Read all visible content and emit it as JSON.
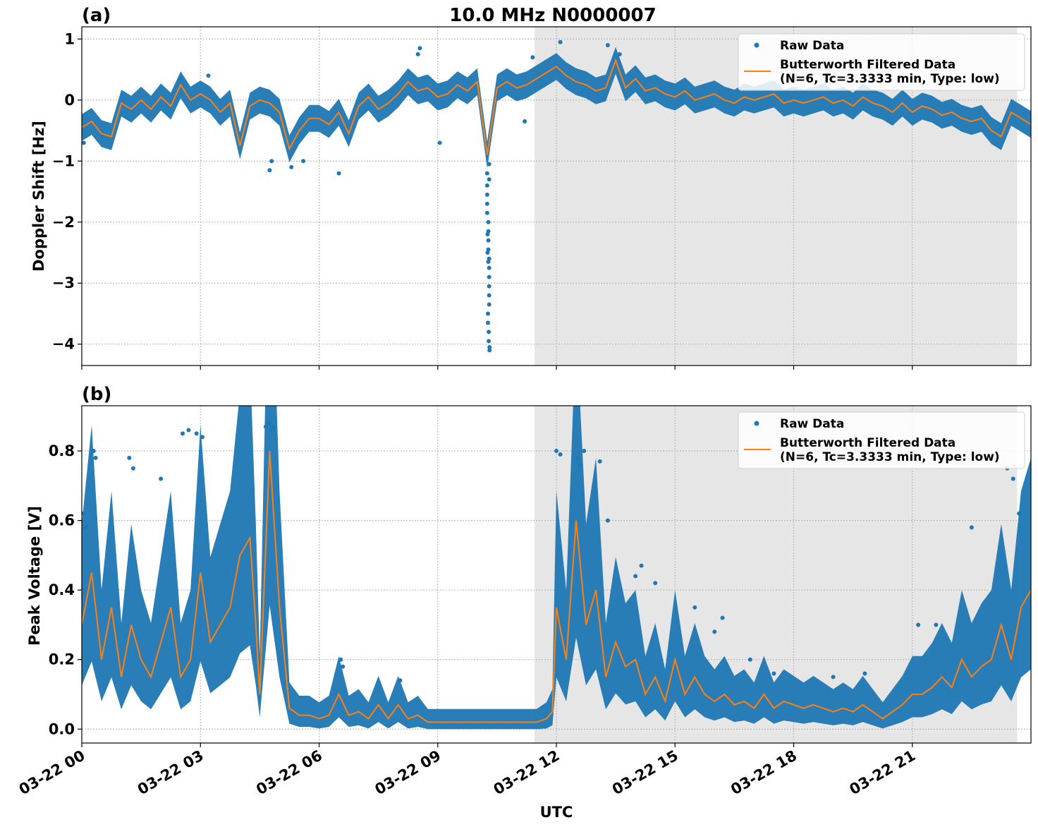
{
  "chart_data": {
    "type": "scatter",
    "title": "10.0 MHz N0000007",
    "xlabel": "UTC",
    "x_tick_labels": [
      "03-22 00",
      "03-22 03",
      "03-22 06",
      "03-22 09",
      "03-22 12",
      "03-22 15",
      "03-22 18",
      "03-22 21"
    ],
    "x_tick_hours": [
      0,
      3,
      6,
      9,
      12,
      15,
      18,
      21
    ],
    "xlim_hours": [
      0,
      24
    ],
    "shaded_region_hours": [
      11.45,
      23.65
    ],
    "colors": {
      "raw": "#1f77b4",
      "filtered": "#ff7f0e",
      "shade": "#e6e6e6",
      "grid": "#b0b0b0"
    },
    "legend": {
      "placement": "top-right",
      "raw_label": "Raw Data",
      "filtered_label_line1": "Butterworth Filtered Data",
      "filtered_label_line2": "(N=6, Tc=3.3333 min, Type: low)"
    },
    "panels": [
      {
        "label": "(a)",
        "ylabel": "Doppler Shift [Hz]",
        "ylim": [
          -4.35,
          1.2
        ],
        "y_ticks": [
          1,
          0,
          -1,
          -2,
          -3,
          -4
        ],
        "y_tick_labels": [
          "1",
          "0",
          "−1",
          "−2",
          "−3",
          "−4"
        ],
        "series": [
          {
            "name": "Butterworth Filtered Data",
            "x": [
              0,
              0.25,
              0.5,
              0.75,
              1,
              1.25,
              1.5,
              1.75,
              2,
              2.25,
              2.5,
              2.75,
              3,
              3.25,
              3.5,
              3.75,
              4,
              4.25,
              4.5,
              4.75,
              5,
              5.25,
              5.5,
              5.75,
              6,
              6.25,
              6.5,
              6.75,
              7,
              7.25,
              7.5,
              7.75,
              8,
              8.25,
              8.5,
              8.75,
              9,
              9.25,
              9.5,
              9.75,
              10,
              10.25,
              10.5,
              10.75,
              11,
              11.25,
              11.5,
              11.75,
              12,
              12.25,
              12.5,
              12.75,
              13,
              13.25,
              13.5,
              13.75,
              14,
              14.25,
              14.5,
              14.75,
              15,
              15.25,
              15.5,
              15.75,
              16,
              16.25,
              16.5,
              16.75,
              17,
              17.25,
              17.5,
              17.75,
              18,
              18.25,
              18.5,
              18.75,
              19,
              19.25,
              19.5,
              19.75,
              20,
              20.25,
              20.5,
              20.75,
              21,
              21.25,
              21.5,
              21.75,
              22,
              22.25,
              22.5,
              22.75,
              23,
              23.25,
              23.5,
              23.75,
              24
            ],
            "y": [
              -0.45,
              -0.35,
              -0.55,
              -0.6,
              -0.05,
              -0.15,
              0.0,
              -0.15,
              0.05,
              -0.1,
              0.25,
              0.0,
              0.1,
              0.0,
              -0.2,
              -0.05,
              -0.75,
              -0.1,
              0.0,
              -0.05,
              -0.2,
              -0.8,
              -0.5,
              -0.3,
              -0.3,
              -0.4,
              -0.2,
              -0.55,
              -0.1,
              0.05,
              -0.15,
              -0.05,
              0.1,
              0.3,
              0.15,
              0.2,
              0.05,
              0.1,
              0.25,
              0.15,
              0.3,
              -0.9,
              0.2,
              0.3,
              0.2,
              0.25,
              0.35,
              0.45,
              0.55,
              0.4,
              0.3,
              0.25,
              0.15,
              0.2,
              0.65,
              0.2,
              0.35,
              0.15,
              0.2,
              0.1,
              0.05,
              0.15,
              0.0,
              0.05,
              0.1,
              0.0,
              -0.05,
              0.05,
              0.0,
              0.05,
              0.1,
              -0.05,
              0.0,
              -0.05,
              0.0,
              0.05,
              -0.05,
              0.0,
              -0.1,
              0.05,
              -0.05,
              -0.1,
              -0.2,
              -0.05,
              -0.2,
              -0.1,
              -0.15,
              -0.25,
              -0.2,
              -0.3,
              -0.35,
              -0.3,
              -0.5,
              -0.6,
              -0.2,
              -0.3,
              -0.4
            ]
          },
          {
            "name": "Raw Data",
            "x": [
              10.25,
              10.25,
              10.25,
              10.25,
              10.25,
              10.28,
              10.28,
              10.28,
              10.28,
              10.3,
              10.3,
              10.3,
              10.3,
              10.3,
              10.27,
              10.27,
              10.29,
              10.29,
              10.31,
              10.31,
              10.3,
              10.26,
              10.26,
              10.28,
              10.3,
              10.3,
              8.5,
              8.55,
              9.05,
              11.2,
              11.4,
              13.3,
              12.1,
              13.6,
              4.75,
              4.8,
              6.5,
              5.3,
              5.6,
              2.5,
              3.2,
              0.05,
              0.5
            ],
            "y": [
              -1.2,
              -1.4,
              -1.55,
              -1.7,
              -1.85,
              -2.0,
              -2.15,
              -2.3,
              -2.45,
              -2.6,
              -2.75,
              -2.9,
              -3.2,
              -3.35,
              -3.5,
              -3.65,
              -3.8,
              -3.95,
              -4.05,
              -4.1,
              -3.05,
              -2.2,
              -2.5,
              -2.65,
              -1.3,
              -1.05,
              0.75,
              0.85,
              -0.7,
              -0.35,
              0.7,
              0.9,
              0.95,
              0.75,
              -1.15,
              -1.0,
              -1.2,
              -1.1,
              -1.0,
              0.35,
              0.4,
              -0.7,
              -0.6
            ]
          }
        ]
      },
      {
        "label": "(b)",
        "ylabel": "Peak Voltage [V]",
        "ylim": [
          -0.04,
          0.93
        ],
        "y_ticks": [
          0.8,
          0.6,
          0.4,
          0.2,
          0.0
        ],
        "y_tick_labels": [
          "0.8",
          "0.6",
          "0.4",
          "0.2",
          "0.0"
        ],
        "series": [
          {
            "name": "Butterworth Filtered Data",
            "x": [
              0,
              0.25,
              0.5,
              0.75,
              1,
              1.25,
              1.5,
              1.75,
              2,
              2.25,
              2.5,
              2.75,
              3,
              3.25,
              3.5,
              3.75,
              4,
              4.25,
              4.4,
              4.5,
              4.75,
              5,
              5.25,
              5.5,
              5.75,
              6,
              6.25,
              6.5,
              6.75,
              7,
              7.25,
              7.5,
              7.75,
              8,
              8.25,
              8.5,
              8.75,
              9,
              9.25,
              9.5,
              9.75,
              10,
              10.25,
              10.5,
              10.75,
              11,
              11.25,
              11.5,
              11.75,
              11.9,
              12,
              12.25,
              12.5,
              12.75,
              13,
              13.25,
              13.5,
              13.75,
              14,
              14.25,
              14.5,
              14.75,
              15,
              15.25,
              15.5,
              15.75,
              16,
              16.25,
              16.5,
              16.75,
              17,
              17.25,
              17.5,
              17.75,
              18,
              18.25,
              18.5,
              18.75,
              19,
              19.25,
              19.5,
              19.75,
              20,
              20.25,
              20.5,
              20.75,
              21,
              21.25,
              21.5,
              21.75,
              22,
              22.25,
              22.5,
              22.75,
              23,
              23.25,
              23.5,
              23.75,
              24
            ],
            "y": [
              0.3,
              0.45,
              0.2,
              0.35,
              0.15,
              0.3,
              0.2,
              0.15,
              0.25,
              0.35,
              0.15,
              0.2,
              0.45,
              0.25,
              0.3,
              0.35,
              0.5,
              0.55,
              0.3,
              0.1,
              0.8,
              0.35,
              0.06,
              0.04,
              0.04,
              0.03,
              0.04,
              0.1,
              0.04,
              0.05,
              0.03,
              0.07,
              0.03,
              0.07,
              0.03,
              0.04,
              0.02,
              0.02,
              0.02,
              0.02,
              0.02,
              0.02,
              0.02,
              0.02,
              0.02,
              0.02,
              0.02,
              0.02,
              0.03,
              0.05,
              0.35,
              0.2,
              0.6,
              0.3,
              0.4,
              0.15,
              0.25,
              0.18,
              0.2,
              0.1,
              0.15,
              0.08,
              0.2,
              0.1,
              0.15,
              0.1,
              0.08,
              0.1,
              0.07,
              0.08,
              0.06,
              0.1,
              0.06,
              0.08,
              0.07,
              0.06,
              0.07,
              0.06,
              0.05,
              0.06,
              0.05,
              0.07,
              0.05,
              0.03,
              0.05,
              0.07,
              0.1,
              0.1,
              0.12,
              0.15,
              0.12,
              0.2,
              0.15,
              0.18,
              0.2,
              0.3,
              0.2,
              0.35,
              0.4
            ]
          },
          {
            "name": "Raw Data",
            "x": [
              0.3,
              0.35,
              1.2,
              1.3,
              2.55,
              2.7,
              2.9,
              3.05,
              4.65,
              4.7,
              4.75,
              4.8,
              4.85,
              6.55,
              6.6,
              8.05,
              12.0,
              12.1,
              12.55,
              12.6,
              12.7,
              13.1,
              13.3,
              14.0,
              14.15,
              14.5,
              15.5,
              16.0,
              16.2,
              16.9,
              17.5,
              19.0,
              19.8,
              21.15,
              21.6,
              22.5,
              23.4,
              23.55,
              23.7,
              0.05,
              0.1,
              2.0
            ],
            "y": [
              0.8,
              0.78,
              0.78,
              0.75,
              0.85,
              0.86,
              0.85,
              0.84,
              0.87,
              0.88,
              0.88,
              0.86,
              0.87,
              0.2,
              0.18,
              0.14,
              0.8,
              0.79,
              0.78,
              0.76,
              0.8,
              0.77,
              0.6,
              0.44,
              0.47,
              0.42,
              0.35,
              0.28,
              0.32,
              0.2,
              0.16,
              0.15,
              0.16,
              0.3,
              0.3,
              0.58,
              0.75,
              0.72,
              0.62,
              0.62,
              0.58,
              0.72
            ]
          }
        ]
      }
    ]
  }
}
